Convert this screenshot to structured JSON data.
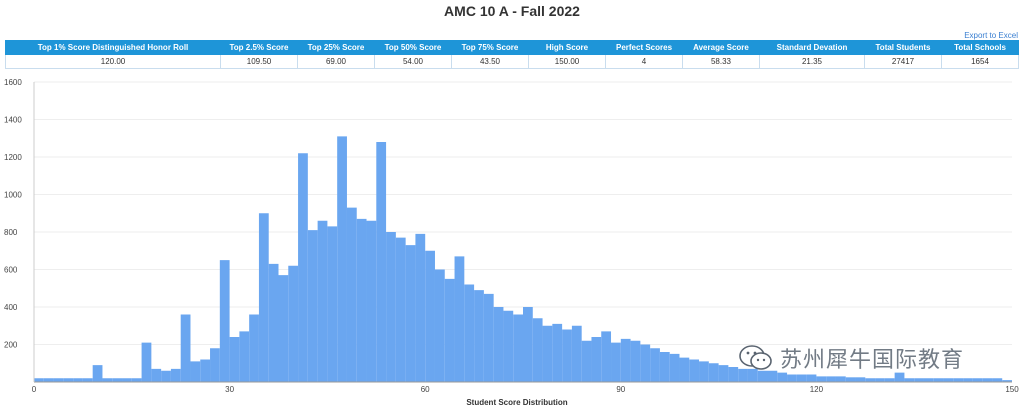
{
  "page": {
    "title": "AMC 10 A - Fall 2022",
    "export_label": "Export to Excel"
  },
  "stats_table": {
    "headers": [
      "Top 1% Score Distinguished Honor Roll",
      "Top 2.5% Score",
      "Top 25% Score",
      "Top 50% Score",
      "Top 75% Score",
      "High Score",
      "Perfect Scores",
      "Average Score",
      "Standard Devation",
      "Total Students",
      "Total Schools"
    ],
    "values": [
      "120.00",
      "109.50",
      "69.00",
      "54.00",
      "43.50",
      "150.00",
      "4",
      "58.33",
      "21.35",
      "27417",
      "1654"
    ]
  },
  "watermark": {
    "text": "苏州犀牛国际教育",
    "icon": "wechat-icon"
  },
  "colors": {
    "bar": "#6aa6f0",
    "header": "#1e95d8",
    "link": "#3a7fd1"
  },
  "chart_data": {
    "type": "bar",
    "xlabel": "Student Score Distribution",
    "ylabel": "",
    "title": "",
    "xlim": [
      0,
      150
    ],
    "ylim": [
      0,
      1600
    ],
    "x_ticks": [
      0,
      30,
      60,
      90,
      120,
      150
    ],
    "y_ticks": [
      200,
      400,
      600,
      800,
      1000,
      1200,
      1400,
      1600
    ],
    "bin_width": 1.5,
    "series": [
      {
        "bins_start": [
          0,
          1.5,
          3,
          4.5,
          6,
          7.5,
          9,
          10.5,
          12,
          13.5,
          15,
          16.5,
          18,
          19.5,
          21,
          22.5,
          24,
          25.5,
          27,
          28.5,
          30,
          31.5,
          33,
          34.5,
          36,
          37.5,
          39,
          40.5,
          42,
          43.5,
          45,
          46.5,
          48,
          49.5,
          51,
          52.5,
          54,
          55.5,
          57,
          58.5,
          60,
          61.5,
          63,
          64.5,
          66,
          67.5,
          69,
          70.5,
          72,
          73.5,
          75,
          76.5,
          78,
          79.5,
          81,
          82.5,
          84,
          85.5,
          87,
          88.5,
          90,
          91.5,
          93,
          94.5,
          96,
          97.5,
          99,
          100.5,
          102,
          103.5,
          105,
          106.5,
          108,
          109.5,
          111,
          112.5,
          114,
          115.5,
          117,
          118.5,
          120,
          121.5,
          123,
          124.5,
          126,
          127.5,
          129,
          130.5,
          132,
          133.5,
          135,
          136.5,
          138,
          139.5,
          141,
          142.5,
          144,
          145.5,
          147,
          148.5
        ],
        "values": [
          20,
          20,
          20,
          20,
          20,
          20,
          90,
          20,
          20,
          20,
          20,
          210,
          70,
          60,
          70,
          360,
          110,
          120,
          180,
          650,
          240,
          270,
          360,
          900,
          630,
          570,
          620,
          1220,
          810,
          860,
          830,
          1310,
          930,
          870,
          860,
          1280,
          800,
          770,
          730,
          790,
          700,
          600,
          550,
          670,
          520,
          490,
          470,
          400,
          380,
          360,
          400,
          340,
          300,
          310,
          280,
          300,
          220,
          240,
          270,
          210,
          230,
          220,
          200,
          180,
          160,
          150,
          130,
          120,
          110,
          100,
          90,
          80,
          70,
          70,
          60,
          60,
          50,
          40,
          40,
          40,
          30,
          30,
          30,
          25,
          25,
          20,
          20,
          20,
          50,
          20,
          20,
          20,
          20,
          20,
          20,
          20,
          20,
          20,
          20,
          10
        ]
      }
    ]
  }
}
